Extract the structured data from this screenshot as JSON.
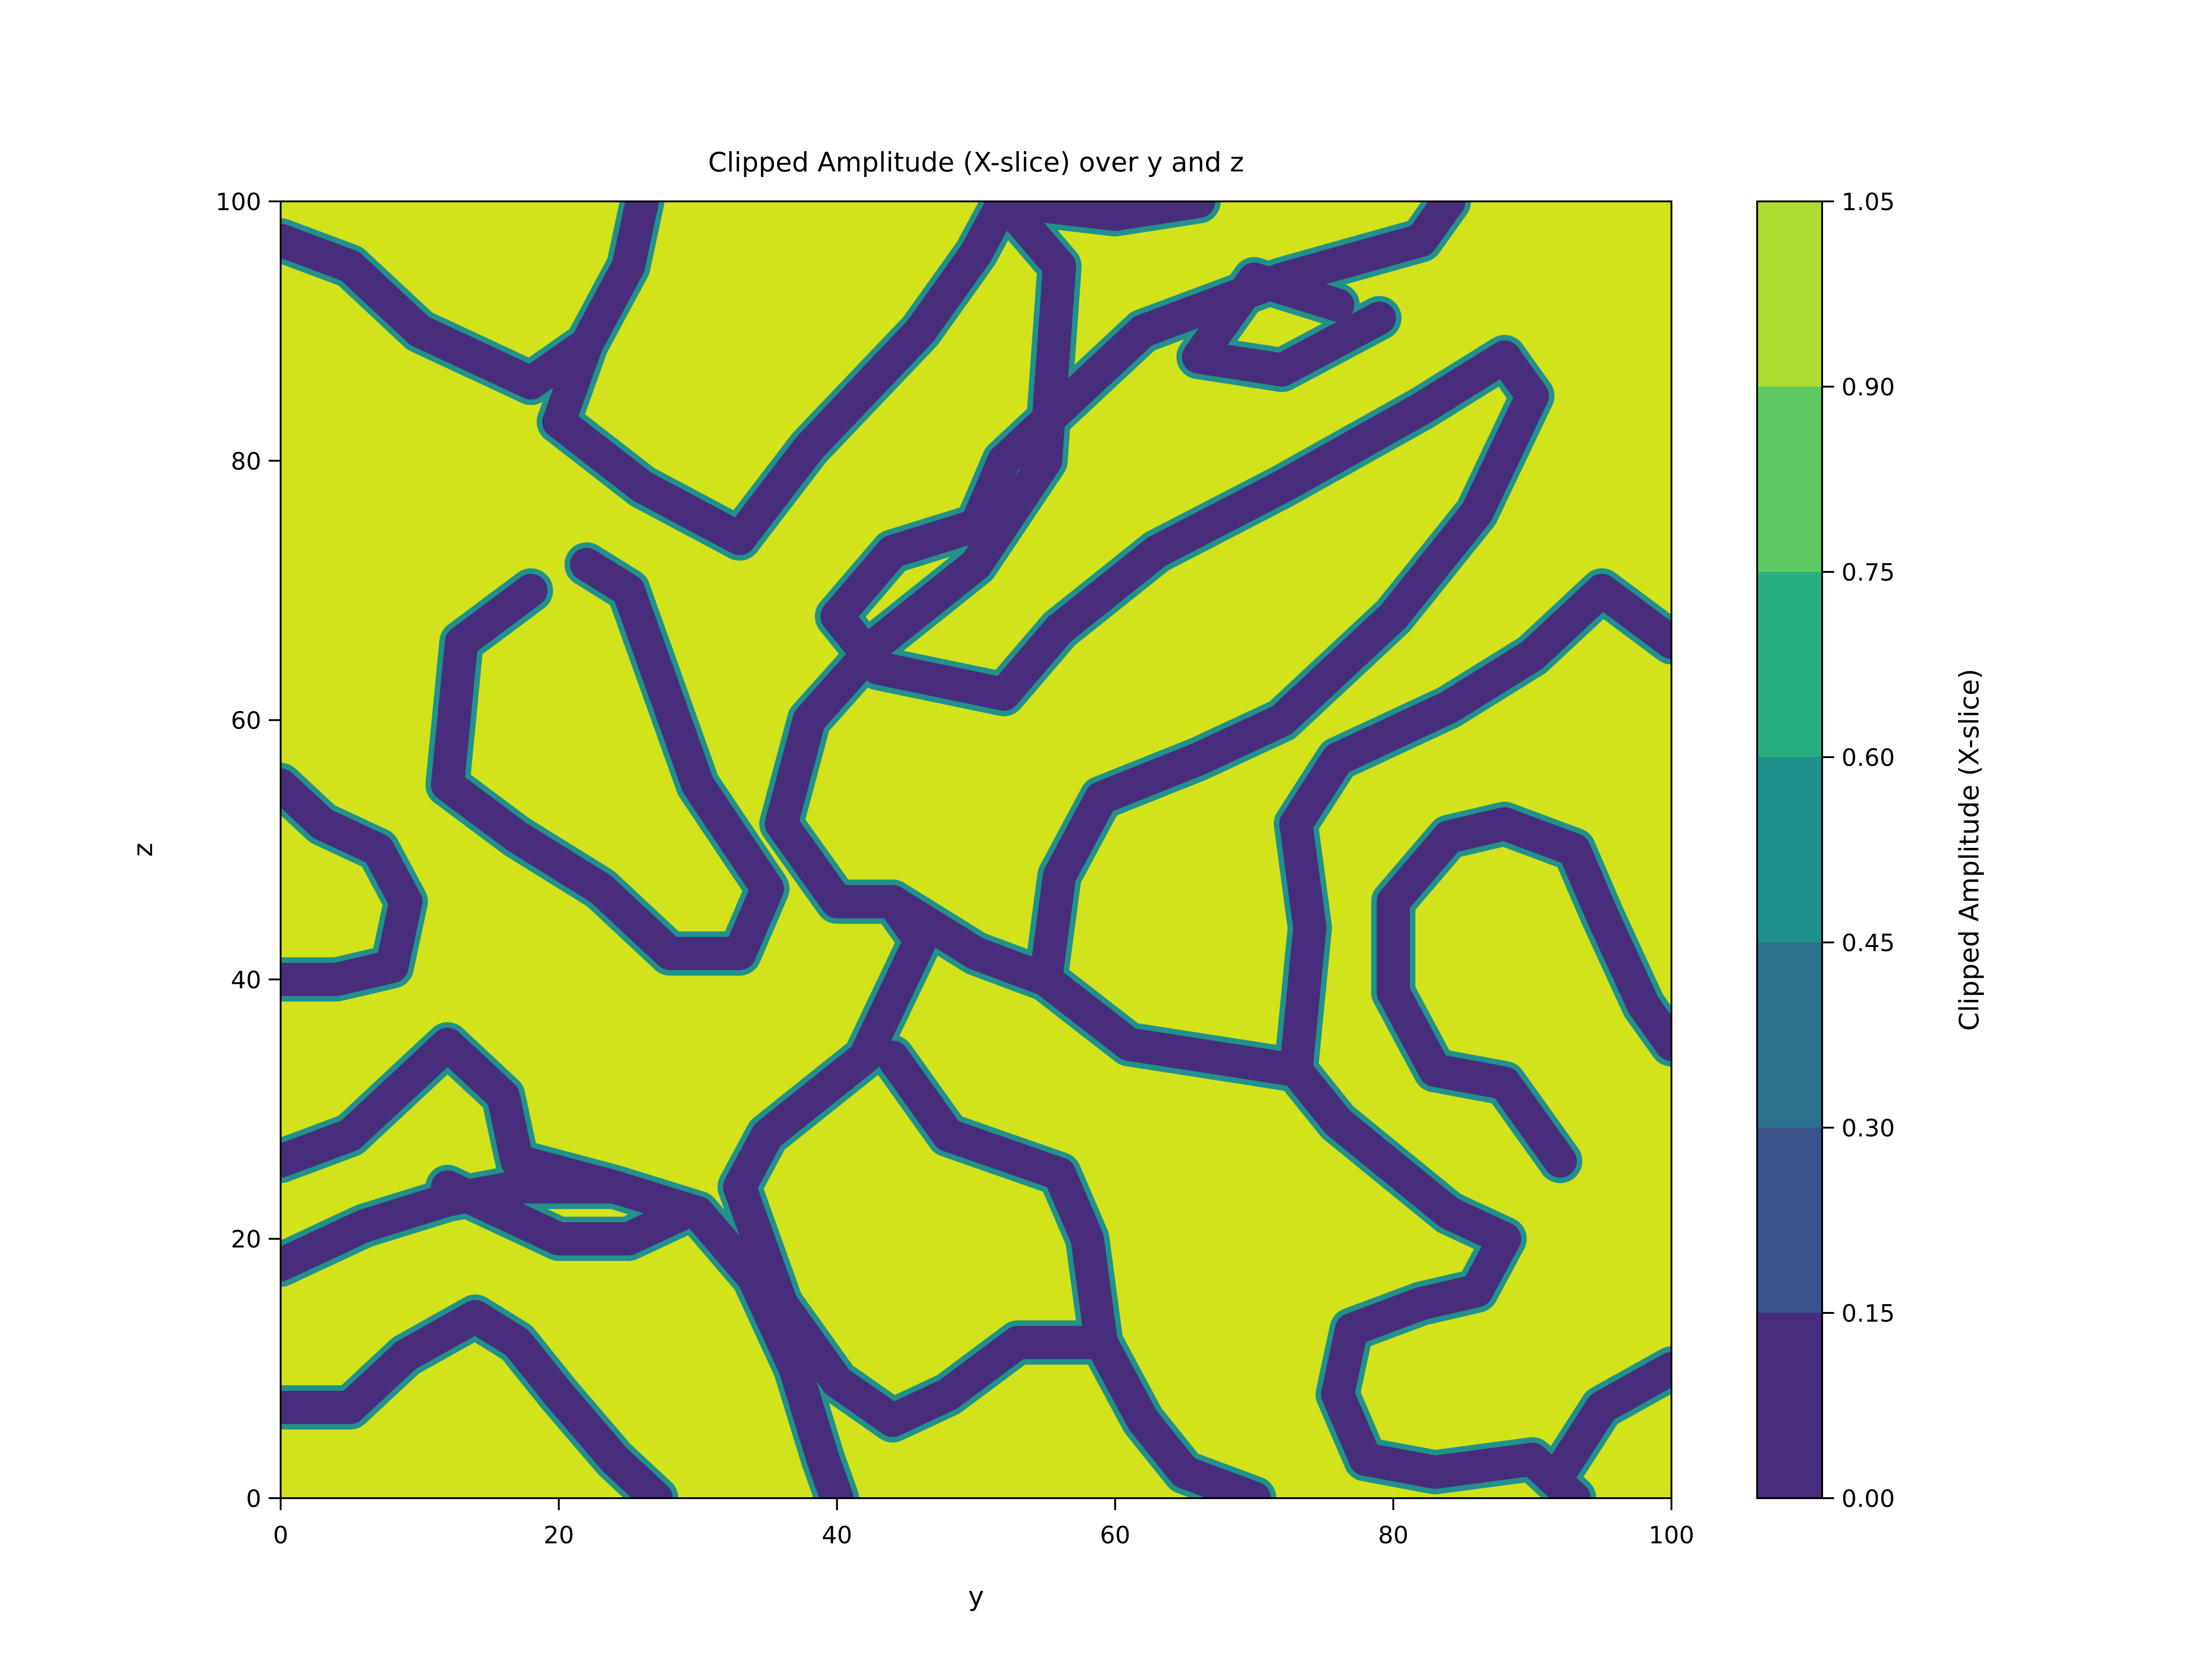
{
  "chart_data": {
    "type": "heatmap",
    "subtype": "filled-contour",
    "title": "Clipped Amplitude (X-slice) over y and z",
    "xlabel": "y",
    "ylabel": "z",
    "xlim": [
      0,
      100
    ],
    "ylim": [
      0,
      100
    ],
    "xticks": [
      "0",
      "20",
      "40",
      "60",
      "80",
      "100"
    ],
    "yticks": [
      "0",
      "20",
      "40",
      "60",
      "80",
      "100"
    ],
    "colorbar": {
      "label": "Clipped Amplitude (X-slice)",
      "levels": [
        0.0,
        0.15,
        0.3,
        0.45,
        0.6,
        0.75,
        0.9,
        1.05
      ],
      "tick_labels": [
        "0.00",
        "0.15",
        "0.30",
        "0.45",
        "0.60",
        "0.75",
        "0.90",
        "1.05"
      ],
      "colors": [
        "#472d7b",
        "#3b528b",
        "#2c728e",
        "#21918c",
        "#28ae80",
        "#5ec962",
        "#addc30",
        "#d2e21b"
      ]
    },
    "field_description": "maze-like pattern: mostly saturated values 0.90-1.05 separated by thin low bands 0.00-0.15",
    "low_band_paths": [
      [
        [
          0,
          97
        ],
        [
          5,
          95
        ],
        [
          10,
          90
        ],
        [
          18,
          86
        ],
        [
          22,
          89
        ],
        [
          25,
          95
        ],
        [
          26,
          100
        ]
      ],
      [
        [
          25,
          95
        ],
        [
          22,
          89
        ],
        [
          20,
          83
        ],
        [
          26,
          78
        ],
        [
          33,
          74
        ],
        [
          38,
          81
        ],
        [
          46,
          90
        ],
        [
          50,
          96
        ],
        [
          52,
          100
        ]
      ],
      [
        [
          52,
          100
        ],
        [
          56,
          95
        ],
        [
          55,
          80
        ],
        [
          50,
          72
        ],
        [
          43,
          66
        ],
        [
          38,
          60
        ],
        [
          36,
          52
        ],
        [
          40,
          46
        ],
        [
          44,
          46
        ]
      ],
      [
        [
          44,
          46
        ],
        [
          50,
          42
        ],
        [
          55,
          40
        ],
        [
          61,
          35
        ],
        [
          73,
          33
        ],
        [
          76,
          29
        ],
        [
          84,
          22
        ],
        [
          88,
          20
        ]
      ],
      [
        [
          44,
          46
        ],
        [
          46,
          43
        ],
        [
          42,
          34
        ],
        [
          35,
          28
        ],
        [
          33,
          24
        ],
        [
          36,
          15
        ],
        [
          40,
          9
        ],
        [
          44,
          6
        ],
        [
          48,
          8
        ],
        [
          53,
          12
        ],
        [
          59,
          12
        ],
        [
          62,
          6
        ],
        [
          65,
          2
        ],
        [
          70,
          0
        ]
      ],
      [
        [
          59,
          12
        ],
        [
          58,
          20
        ],
        [
          56,
          25
        ],
        [
          48,
          28
        ],
        [
          44,
          34
        ]
      ],
      [
        [
          55,
          40
        ],
        [
          56,
          48
        ],
        [
          59,
          54
        ],
        [
          66,
          57
        ],
        [
          72,
          60
        ],
        [
          80,
          68
        ],
        [
          86,
          76
        ],
        [
          90,
          85
        ],
        [
          88,
          88
        ],
        [
          82,
          84
        ],
        [
          72,
          78
        ],
        [
          63,
          73
        ],
        [
          56,
          67
        ]
      ],
      [
        [
          56,
          67
        ],
        [
          52,
          62
        ],
        [
          43,
          64
        ],
        [
          40,
          68
        ],
        [
          44,
          73
        ],
        [
          50,
          75
        ],
        [
          52,
          80
        ],
        [
          57,
          85
        ],
        [
          62,
          90
        ],
        [
          72,
          94
        ],
        [
          82,
          97
        ],
        [
          84,
          100
        ]
      ],
      [
        [
          0,
          55
        ],
        [
          3,
          52
        ],
        [
          7,
          50
        ],
        [
          9,
          46
        ],
        [
          8,
          41
        ],
        [
          4,
          40
        ],
        [
          0,
          40
        ]
      ],
      [
        [
          0,
          26
        ],
        [
          5,
          28
        ],
        [
          10,
          33
        ],
        [
          12,
          35
        ],
        [
          16,
          31
        ],
        [
          17,
          26
        ],
        [
          24,
          24
        ],
        [
          30,
          22
        ],
        [
          34,
          17
        ],
        [
          37,
          10
        ],
        [
          39,
          3
        ],
        [
          40,
          0
        ]
      ],
      [
        [
          0,
          18
        ],
        [
          6,
          21
        ],
        [
          12,
          23
        ],
        [
          17,
          24
        ],
        [
          24,
          24
        ]
      ],
      [
        [
          12,
          24
        ],
        [
          20,
          20
        ],
        [
          25,
          20
        ],
        [
          29,
          22
        ]
      ],
      [
        [
          0,
          7
        ],
        [
          5,
          7
        ],
        [
          9,
          11
        ],
        [
          14,
          14
        ],
        [
          17,
          12
        ],
        [
          20,
          8
        ],
        [
          24,
          3
        ],
        [
          27,
          0
        ]
      ],
      [
        [
          92,
          26
        ],
        [
          88,
          32
        ],
        [
          83,
          33
        ],
        [
          80,
          39
        ],
        [
          80,
          46
        ],
        [
          84,
          51
        ],
        [
          88,
          52
        ],
        [
          93,
          50
        ],
        [
          95,
          45
        ],
        [
          98,
          38
        ],
        [
          100,
          35
        ]
      ],
      [
        [
          73,
          33
        ],
        [
          74,
          44
        ],
        [
          73,
          52
        ],
        [
          76,
          57
        ],
        [
          84,
          61
        ],
        [
          90,
          65
        ],
        [
          95,
          70
        ],
        [
          100,
          66
        ]
      ],
      [
        [
          88,
          20
        ],
        [
          86,
          16
        ],
        [
          82,
          15
        ],
        [
          77,
          13
        ],
        [
          76,
          8
        ],
        [
          78,
          3
        ],
        [
          83,
          2
        ],
        [
          90,
          3
        ],
        [
          93,
          0
        ]
      ],
      [
        [
          92,
          2
        ],
        [
          95,
          7
        ],
        [
          100,
          10
        ]
      ],
      [
        [
          18,
          70
        ],
        [
          13,
          66
        ],
        [
          12,
          55
        ],
        [
          17,
          51
        ],
        [
          23,
          47
        ],
        [
          28,
          42
        ],
        [
          33,
          42
        ],
        [
          35,
          47
        ],
        [
          30,
          55
        ],
        [
          27,
          64
        ],
        [
          25,
          70
        ],
        [
          22,
          72
        ]
      ],
      [
        [
          76,
          92
        ],
        [
          70,
          94
        ],
        [
          66,
          88
        ],
        [
          72,
          87
        ],
        [
          79,
          91
        ]
      ],
      [
        [
          52,
          100
        ],
        [
          60,
          99
        ],
        [
          66,
          100
        ]
      ]
    ]
  }
}
